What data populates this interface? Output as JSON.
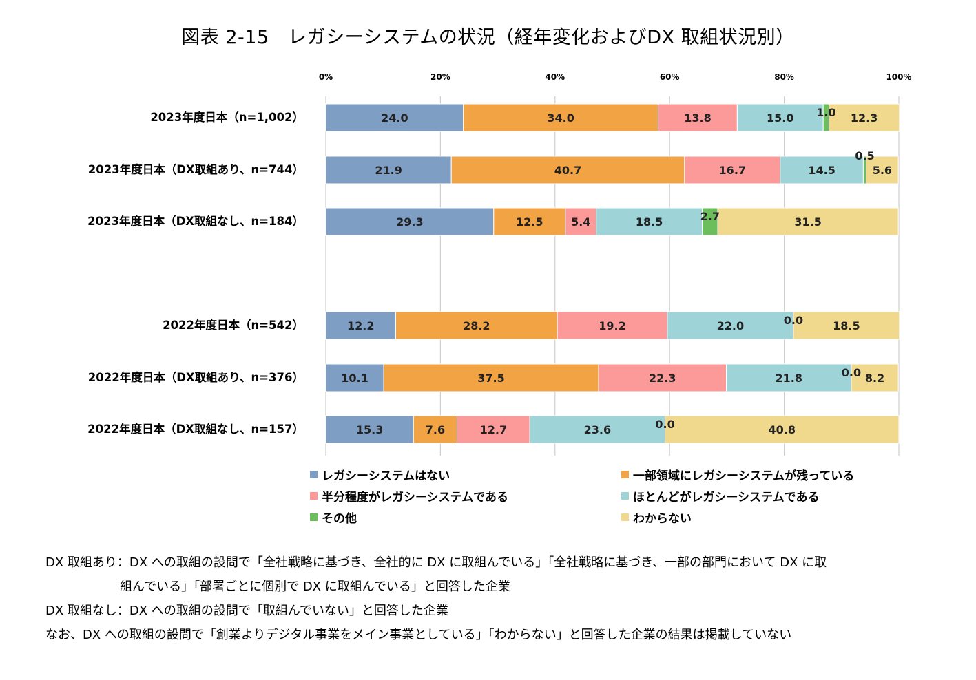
{
  "title": "図表 2-15　レガシーシステムの状況（経年変化およびDX 取組状況別）",
  "chart_data": {
    "type": "bar",
    "orientation": "horizontal",
    "stacked": "percent",
    "x_ticks": [
      "0%",
      "20%",
      "40%",
      "60%",
      "80%",
      "100%"
    ],
    "xlim": [
      0,
      100
    ],
    "grid": true,
    "legend_position": "bottom",
    "categories": [
      "2023年度日本（n=1,002）",
      "2023年度日本（DX取組あり、n=744）",
      "2023年度日本（DX取組なし、n=184）",
      "2022年度日本（n=542）",
      "2022年度日本（DX取組あり、n=376）",
      "2022年度日本（DX取組なし、n=157）"
    ],
    "series": [
      {
        "name": "レガシーシステムはない",
        "color": "#7f9ec4",
        "values": [
          24.0,
          21.9,
          29.3,
          12.2,
          10.1,
          15.3
        ]
      },
      {
        "name": "一部領域にレガシーシステムが残っている",
        "color": "#f2a444",
        "values": [
          34.0,
          40.7,
          12.5,
          28.2,
          37.5,
          7.6
        ]
      },
      {
        "name": "半分程度がレガシーシステムである",
        "color": "#fb9a99",
        "values": [
          13.8,
          16.7,
          5.4,
          19.2,
          22.3,
          12.7
        ]
      },
      {
        "name": "ほとんどがレガシーシステムである",
        "color": "#9ed3d8",
        "values": [
          15.0,
          14.5,
          18.5,
          22.0,
          21.8,
          23.6
        ]
      },
      {
        "name": "その他",
        "color": "#6cbd5b",
        "values": [
          1.0,
          0.5,
          2.7,
          0.0,
          0.0,
          0.0
        ]
      },
      {
        "name": "わからない",
        "color": "#f0d98c",
        "values": [
          12.3,
          5.6,
          31.5,
          18.5,
          8.2,
          40.8
        ]
      }
    ]
  },
  "notes": [
    "DX 取組あり：DX への取組の設問で「全社戦略に基づき、全社的に DX に取組んでいる」「全社戦略に基づき、一部の部門において DX に取",
    "組んでいる」「部署ごとに個別で DX に取組んでいる」と回答した企業",
    "DX 取組なし：DX への取組の設問で「取組んでいない」と回答した企業",
    "なお、DX への取組の設問で「創業よりデジタル事業をメイン事業としている」「わからない」と回答した企業の結果は掲載していない"
  ]
}
